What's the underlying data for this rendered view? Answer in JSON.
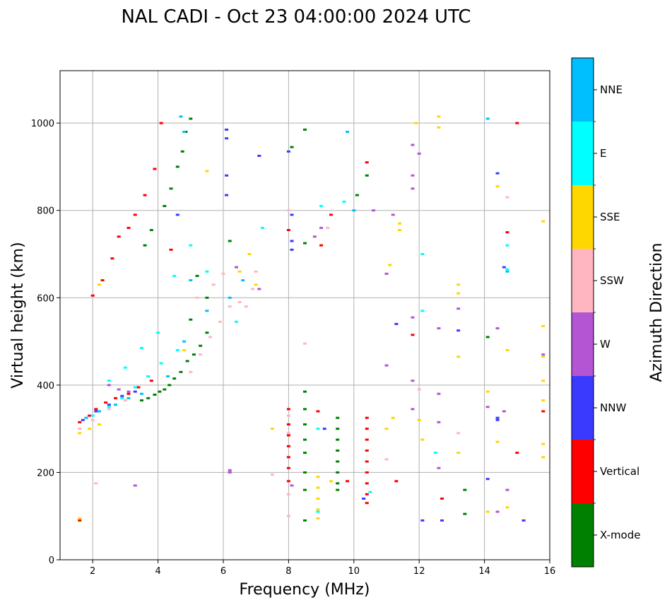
{
  "chart_data": {
    "type": "scatter",
    "title": "NAL CADI - Oct 23 04:00:00 2024 UTC",
    "xlabel": "Frequency (MHz)",
    "ylabel": "Virtual height (km)",
    "xlim": [
      1,
      16
    ],
    "ylim": [
      0,
      1120
    ],
    "xticks": [
      2,
      4,
      6,
      8,
      10,
      12,
      14,
      16
    ],
    "yticks": [
      0,
      200,
      400,
      600,
      800,
      1000
    ],
    "grid": true,
    "colorbar": {
      "title": "Azimuth Direction",
      "categories": [
        {
          "name": "X-mode",
          "color": "#008000"
        },
        {
          "name": "Vertical",
          "color": "#ff0000"
        },
        {
          "name": "NNW",
          "color": "#3a3aff"
        },
        {
          "name": "W",
          "color": "#b455d4"
        },
        {
          "name": "SSW",
          "color": "#ffb6c1"
        },
        {
          "name": "SSE",
          "color": "#ffd700"
        },
        {
          "name": "E",
          "color": "#00ffff"
        },
        {
          "name": "NNE",
          "color": "#00bfff"
        }
      ]
    },
    "series": [
      {
        "name": "X-mode",
        "points": [
          [
            3.5,
            365
          ],
          [
            3.7,
            370
          ],
          [
            3.9,
            378
          ],
          [
            4.05,
            385
          ],
          [
            4.2,
            390
          ],
          [
            4.35,
            400
          ],
          [
            4.5,
            415
          ],
          [
            4.7,
            430
          ],
          [
            4.9,
            455
          ],
          [
            5.1,
            470
          ],
          [
            5.3,
            490
          ],
          [
            5.5,
            520
          ],
          [
            3.6,
            720
          ],
          [
            3.8,
            755
          ],
          [
            4.2,
            810
          ],
          [
            4.4,
            850
          ],
          [
            4.6,
            900
          ],
          [
            4.75,
            935
          ],
          [
            4.85,
            980
          ],
          [
            5.0,
            1010
          ],
          [
            8.1,
            945
          ],
          [
            8.5,
            985
          ],
          [
            8.5,
            725
          ],
          [
            8.5,
            385
          ],
          [
            8.5,
            345
          ],
          [
            8.5,
            310
          ],
          [
            8.5,
            275
          ],
          [
            8.5,
            245
          ],
          [
            8.5,
            200
          ],
          [
            8.5,
            160
          ],
          [
            8.5,
            90
          ],
          [
            9.5,
            325
          ],
          [
            9.5,
            300
          ],
          [
            9.5,
            275
          ],
          [
            9.5,
            250
          ],
          [
            9.5,
            225
          ],
          [
            9.5,
            200
          ],
          [
            9.5,
            175
          ],
          [
            9.5,
            160
          ],
          [
            13.4,
            160
          ],
          [
            13.4,
            105
          ],
          [
            14.1,
            510
          ],
          [
            10.4,
            880
          ],
          [
            10.1,
            835
          ],
          [
            5.2,
            650
          ],
          [
            5.5,
            600
          ],
          [
            5.0,
            550
          ],
          [
            6.2,
            730
          ]
        ]
      },
      {
        "name": "Vertical",
        "points": [
          [
            1.6,
            315
          ],
          [
            1.9,
            330
          ],
          [
            2.1,
            345
          ],
          [
            2.4,
            360
          ],
          [
            2.7,
            370
          ],
          [
            3.1,
            380
          ],
          [
            3.4,
            395
          ],
          [
            3.8,
            410
          ],
          [
            2.0,
            605
          ],
          [
            2.3,
            640
          ],
          [
            2.6,
            690
          ],
          [
            2.8,
            740
          ],
          [
            3.1,
            760
          ],
          [
            3.3,
            790
          ],
          [
            3.6,
            835
          ],
          [
            3.9,
            895
          ],
          [
            4.1,
            1000
          ],
          [
            4.4,
            710
          ],
          [
            8.0,
            345
          ],
          [
            8.0,
            310
          ],
          [
            8.0,
            285
          ],
          [
            8.0,
            260
          ],
          [
            8.0,
            235
          ],
          [
            8.0,
            210
          ],
          [
            8.0,
            180
          ],
          [
            8.0,
            755
          ],
          [
            8.9,
            340
          ],
          [
            9.8,
            180
          ],
          [
            10.4,
            325
          ],
          [
            10.4,
            300
          ],
          [
            10.4,
            275
          ],
          [
            10.4,
            250
          ],
          [
            10.4,
            225
          ],
          [
            10.4,
            200
          ],
          [
            10.4,
            175
          ],
          [
            10.4,
            150
          ],
          [
            10.4,
            130
          ],
          [
            10.4,
            910
          ],
          [
            11.3,
            180
          ],
          [
            11.8,
            515
          ],
          [
            12.7,
            140
          ],
          [
            14.7,
            750
          ],
          [
            15.0,
            1000
          ],
          [
            15.0,
            245
          ],
          [
            15.8,
            340
          ],
          [
            9.0,
            720
          ],
          [
            9.3,
            790
          ],
          [
            1.6,
            90
          ]
        ]
      },
      {
        "name": "NNW",
        "points": [
          [
            1.7,
            320
          ],
          [
            2.1,
            340
          ],
          [
            2.5,
            355
          ],
          [
            2.9,
            375
          ],
          [
            3.3,
            385
          ],
          [
            4.6,
            790
          ],
          [
            6.1,
            985
          ],
          [
            6.1,
            965
          ],
          [
            6.1,
            880
          ],
          [
            6.1,
            835
          ],
          [
            7.1,
            925
          ],
          [
            8.0,
            935
          ],
          [
            8.1,
            790
          ],
          [
            8.1,
            730
          ],
          [
            8.1,
            710
          ],
          [
            10.3,
            140
          ],
          [
            12.1,
            90
          ],
          [
            12.7,
            90
          ],
          [
            13.2,
            525
          ],
          [
            14.1,
            185
          ],
          [
            14.4,
            325
          ],
          [
            14.4,
            320
          ],
          [
            14.4,
            885
          ],
          [
            14.6,
            670
          ],
          [
            15.2,
            90
          ],
          [
            11.3,
            540
          ],
          [
            9.1,
            300
          ]
        ]
      },
      {
        "name": "W",
        "points": [
          [
            2.5,
            400
          ],
          [
            2.8,
            390
          ],
          [
            3.1,
            385
          ],
          [
            3.3,
            170
          ],
          [
            6.2,
            205
          ],
          [
            6.2,
            200
          ],
          [
            6.4,
            670
          ],
          [
            7.1,
            620
          ],
          [
            8.1,
            170
          ],
          [
            8.8,
            740
          ],
          [
            9.0,
            760
          ],
          [
            10.6,
            800
          ],
          [
            11.0,
            655
          ],
          [
            11.0,
            445
          ],
          [
            11.2,
            790
          ],
          [
            11.8,
            950
          ],
          [
            11.8,
            880
          ],
          [
            11.8,
            850
          ],
          [
            11.8,
            555
          ],
          [
            11.8,
            410
          ],
          [
            11.8,
            345
          ],
          [
            12.0,
            930
          ],
          [
            12.6,
            530
          ],
          [
            12.6,
            380
          ],
          [
            12.6,
            315
          ],
          [
            12.6,
            210
          ],
          [
            13.2,
            575
          ],
          [
            14.1,
            350
          ],
          [
            14.4,
            530
          ],
          [
            14.4,
            110
          ],
          [
            14.6,
            340
          ],
          [
            14.7,
            160
          ],
          [
            15.8,
            470
          ]
        ]
      },
      {
        "name": "SSW",
        "points": [
          [
            1.6,
            300
          ],
          [
            2.0,
            320
          ],
          [
            2.5,
            345
          ],
          [
            3.0,
            365
          ],
          [
            5.0,
            430
          ],
          [
            5.3,
            470
          ],
          [
            5.6,
            510
          ],
          [
            5.9,
            545
          ],
          [
            6.2,
            580
          ],
          [
            6.5,
            590
          ],
          [
            6.7,
            580
          ],
          [
            6.9,
            620
          ],
          [
            7.0,
            660
          ],
          [
            5.2,
            600
          ],
          [
            5.7,
            630
          ],
          [
            6.0,
            655
          ],
          [
            8.0,
            800
          ],
          [
            8.0,
            330
          ],
          [
            8.0,
            290
          ],
          [
            8.0,
            150
          ],
          [
            8.0,
            100
          ],
          [
            8.5,
            495
          ],
          [
            9.2,
            760
          ],
          [
            11.0,
            230
          ],
          [
            12.0,
            390
          ],
          [
            13.2,
            290
          ],
          [
            14.7,
            830
          ],
          [
            7.5,
            195
          ],
          [
            2.1,
            175
          ]
        ]
      },
      {
        "name": "SSE",
        "points": [
          [
            1.6,
            290
          ],
          [
            1.9,
            300
          ],
          [
            2.2,
            310
          ],
          [
            1.6,
            95
          ],
          [
            2.2,
            630
          ],
          [
            4.8,
            480
          ],
          [
            5.5,
            890
          ],
          [
            6.5,
            660
          ],
          [
            6.8,
            700
          ],
          [
            7.0,
            630
          ],
          [
            7.5,
            300
          ],
          [
            8.9,
            190
          ],
          [
            8.9,
            165
          ],
          [
            8.9,
            140
          ],
          [
            8.9,
            115
          ],
          [
            8.9,
            95
          ],
          [
            9.3,
            180
          ],
          [
            11.0,
            300
          ],
          [
            11.1,
            675
          ],
          [
            11.2,
            325
          ],
          [
            11.4,
            770
          ],
          [
            11.4,
            755
          ],
          [
            11.9,
            1000
          ],
          [
            12.0,
            320
          ],
          [
            12.1,
            275
          ],
          [
            12.6,
            1015
          ],
          [
            12.6,
            990
          ],
          [
            13.2,
            630
          ],
          [
            13.2,
            610
          ],
          [
            13.2,
            465
          ],
          [
            13.2,
            245
          ],
          [
            14.1,
            385
          ],
          [
            14.1,
            110
          ],
          [
            14.4,
            855
          ],
          [
            14.4,
            270
          ],
          [
            14.7,
            480
          ],
          [
            14.7,
            120
          ],
          [
            15.8,
            775
          ],
          [
            15.8,
            535
          ],
          [
            15.8,
            465
          ],
          [
            15.8,
            410
          ],
          [
            15.8,
            365
          ],
          [
            15.8,
            265
          ],
          [
            15.8,
            235
          ]
        ]
      },
      {
        "name": "E",
        "points": [
          [
            2.0,
            330
          ],
          [
            2.5,
            350
          ],
          [
            2.9,
            370
          ],
          [
            3.3,
            395
          ],
          [
            3.7,
            420
          ],
          [
            4.1,
            450
          ],
          [
            4.6,
            480
          ],
          [
            2.5,
            410
          ],
          [
            3.0,
            440
          ],
          [
            3.5,
            485
          ],
          [
            4.0,
            520
          ],
          [
            4.5,
            650
          ],
          [
            5.0,
            720
          ],
          [
            5.5,
            660
          ],
          [
            7.2,
            760
          ],
          [
            8.9,
            300
          ],
          [
            9.0,
            810
          ],
          [
            9.7,
            820
          ],
          [
            10.5,
            155
          ],
          [
            12.1,
            570
          ],
          [
            12.1,
            700
          ],
          [
            14.7,
            720
          ],
          [
            14.7,
            665
          ],
          [
            12.5,
            245
          ],
          [
            8.9,
            110
          ],
          [
            6.4,
            545
          ]
        ]
      },
      {
        "name": "NNE",
        "points": [
          [
            1.8,
            325
          ],
          [
            2.2,
            340
          ],
          [
            2.7,
            355
          ],
          [
            3.1,
            370
          ],
          [
            3.5,
            380
          ],
          [
            4.3,
            420
          ],
          [
            4.8,
            500
          ],
          [
            5.5,
            570
          ],
          [
            5.0,
            640
          ],
          [
            4.7,
            1015
          ],
          [
            4.8,
            980
          ],
          [
            9.8,
            980
          ],
          [
            10.0,
            800
          ],
          [
            14.1,
            1010
          ],
          [
            14.7,
            660
          ],
          [
            6.2,
            600
          ],
          [
            6.6,
            640
          ]
        ]
      }
    ]
  }
}
